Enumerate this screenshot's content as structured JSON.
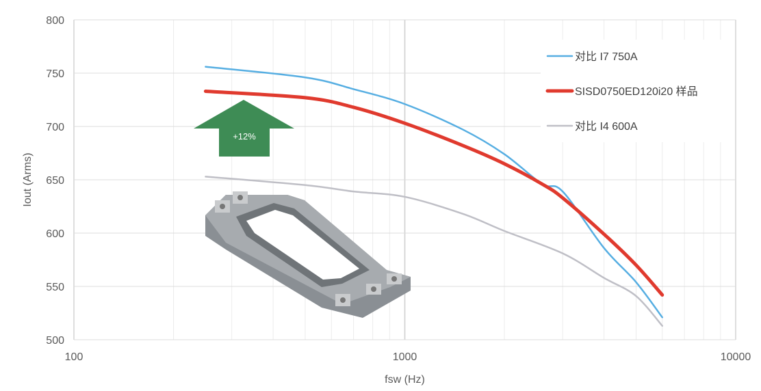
{
  "chart_data": {
    "type": "line",
    "title": "",
    "xlabel": "fsw (Hz)",
    "ylabel": "Iout (Arms)",
    "xscale": "log",
    "xlim": [
      100,
      10000
    ],
    "ylim": [
      500,
      800
    ],
    "xticks": [
      100,
      1000,
      10000
    ],
    "xtick_labels": [
      "100",
      "1000",
      "10000"
    ],
    "yticks": [
      500,
      550,
      600,
      650,
      700,
      750,
      800
    ],
    "ytick_labels": [
      "500",
      "550",
      "600",
      "650",
      "700",
      "750",
      "800"
    ],
    "grid": true,
    "legend_position": "top-right",
    "series": [
      {
        "name": "对比 I7 750A",
        "color": "#56aee2",
        "x": [
          250,
          500,
          700,
          1000,
          1500,
          2000,
          2600,
          3000,
          4000,
          5000,
          6000
        ],
        "y": [
          756,
          746,
          735,
          721,
          697,
          674,
          646,
          639,
          586,
          554,
          521
        ]
      },
      {
        "name": "SISD0750ED120i20 样品",
        "color": "#e03a2e",
        "x": [
          250,
          500,
          700,
          1000,
          1500,
          2000,
          2600,
          3000,
          4000,
          5000,
          6000
        ],
        "y": [
          733,
          727,
          718,
          703,
          682,
          665,
          646,
          633,
          599,
          570,
          542
        ]
      },
      {
        "name": "对比 I4 600A",
        "color": "#bfbfc6",
        "x": [
          250,
          500,
          700,
          1000,
          1500,
          2000,
          3000,
          4000,
          5000,
          6000
        ],
        "y": [
          653,
          645,
          639,
          634,
          618,
          602,
          581,
          558,
          541,
          513
        ]
      }
    ],
    "annotations": [
      {
        "text": "+12%",
        "shape": "up-arrow",
        "color": "#3e8c55"
      }
    ]
  }
}
